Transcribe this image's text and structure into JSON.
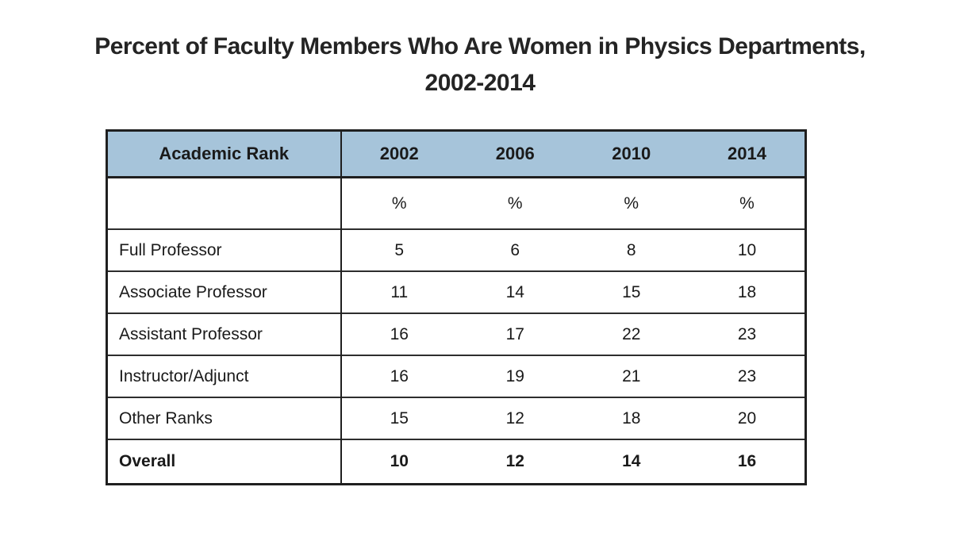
{
  "title": {
    "line1": "Percent of Faculty Members Who Are Women in Physics Departments,",
    "line2": "2002-2014"
  },
  "table": {
    "header": {
      "rank_label": "Academic Rank",
      "years": [
        "2002",
        "2006",
        "2010",
        "2014"
      ]
    },
    "unit_row": {
      "rank": "",
      "units": [
        "%",
        "%",
        "%",
        "%"
      ]
    },
    "rows": [
      {
        "rank": "Full Professor",
        "values": [
          "5",
          "6",
          "8",
          "10"
        ]
      },
      {
        "rank": "Associate Professor",
        "values": [
          "11",
          "14",
          "15",
          "18"
        ]
      },
      {
        "rank": "Assistant Professor",
        "values": [
          "16",
          "17",
          "22",
          "23"
        ]
      },
      {
        "rank": "Instructor/Adjunct",
        "values": [
          "16",
          "19",
          "21",
          "23"
        ]
      },
      {
        "rank": "Other Ranks",
        "values": [
          "15",
          "12",
          "18",
          "20"
        ]
      },
      {
        "rank": "Overall",
        "values": [
          "10",
          "12",
          "14",
          "16"
        ]
      }
    ]
  },
  "colors": {
    "header_bg": "#a6c4da",
    "border": "#1f1f1f",
    "text": "#1a1a1a"
  },
  "chart_data": {
    "type": "table",
    "title": "Percent of Faculty Members Who Are Women in Physics Departments, 2002-2014",
    "columns": [
      "Academic Rank",
      "2002",
      "2006",
      "2010",
      "2014"
    ],
    "units": "%",
    "rows": [
      {
        "category": "Full Professor",
        "values": [
          5,
          6,
          8,
          10
        ]
      },
      {
        "category": "Associate Professor",
        "values": [
          11,
          14,
          15,
          18
        ]
      },
      {
        "category": "Assistant Professor",
        "values": [
          16,
          17,
          22,
          23
        ]
      },
      {
        "category": "Instructor/Adjunct",
        "values": [
          16,
          19,
          21,
          23
        ]
      },
      {
        "category": "Other Ranks",
        "values": [
          15,
          12,
          18,
          20
        ]
      },
      {
        "category": "Overall",
        "values": [
          10,
          12,
          14,
          16
        ]
      }
    ]
  }
}
